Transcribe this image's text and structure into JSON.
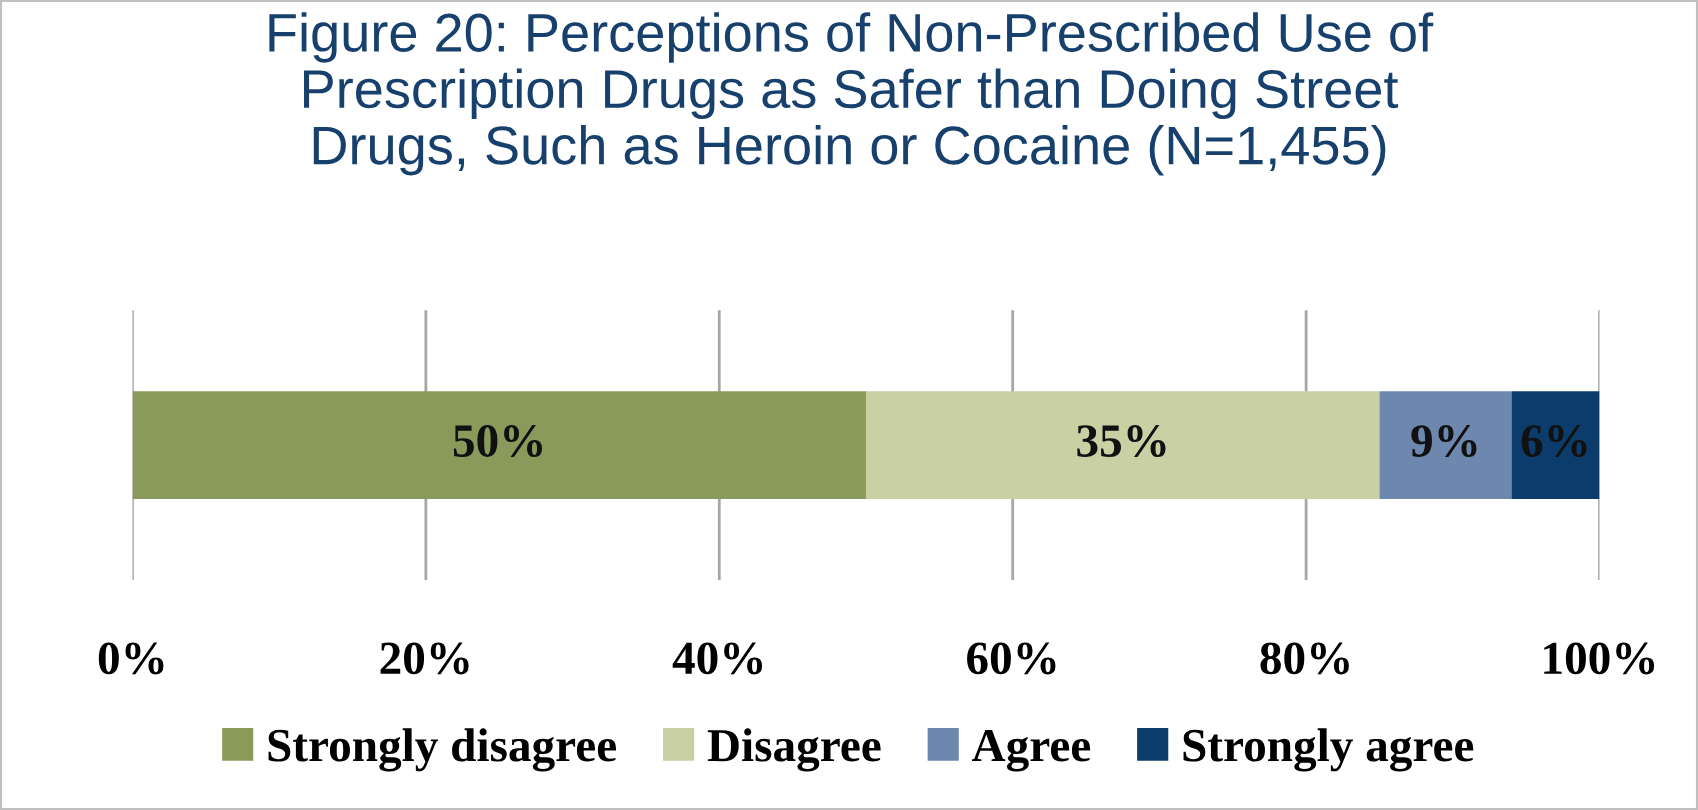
{
  "chart_data": {
    "type": "bar",
    "orientation": "horizontal",
    "stacked": true,
    "title": "Figure 20: Perceptions of Non-Prescribed Use of\nPrescription Drugs as Safer than Doing Street\nDrugs, Such as Heroin or Cocaine (N=1,455)",
    "categories": [
      null
    ],
    "series": [
      {
        "name": "Strongly disagree",
        "color": "#8a9a5b",
        "values": [
          50
        ],
        "value_labels": [
          "50%"
        ]
      },
      {
        "name": "Disagree",
        "color": "#c9d0a4",
        "values": [
          35
        ],
        "value_labels": [
          "35%"
        ]
      },
      {
        "name": "Agree",
        "color": "#6e87ae",
        "values": [
          9
        ],
        "value_labels": [
          "9%"
        ]
      },
      {
        "name": "Strongly agree",
        "color": "#0c3c6c",
        "values": [
          6
        ],
        "value_labels": [
          "6%"
        ]
      }
    ],
    "xlim": [
      0,
      100
    ],
    "xticks": [
      {
        "value": 0,
        "label": "0%"
      },
      {
        "value": 20,
        "label": "20%"
      },
      {
        "value": 40,
        "label": "40%"
      },
      {
        "value": 60,
        "label": "60%"
      },
      {
        "value": 80,
        "label": "80%"
      },
      {
        "value": 100,
        "label": "100%"
      }
    ],
    "grid": "x",
    "legend": "bottom"
  }
}
